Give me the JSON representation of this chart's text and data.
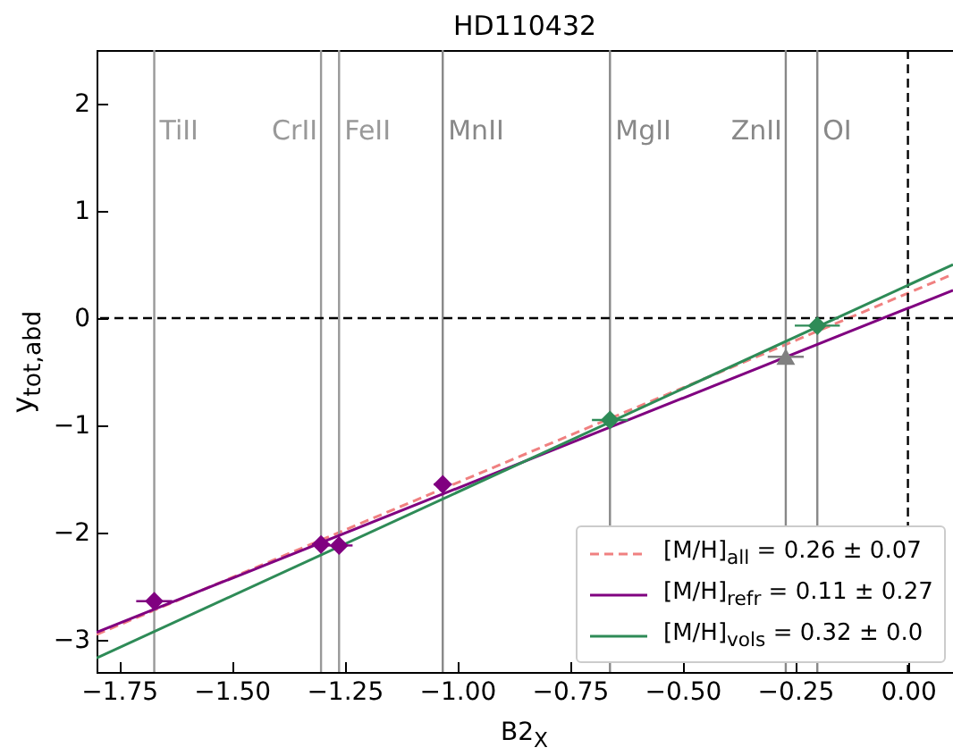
{
  "chart_data": {
    "type": "scatter",
    "title": "HD110432",
    "xlabel": "B2$_{X}$",
    "ylabel": "y$_{tot,abd}$",
    "xlim": [
      -1.8,
      0.1
    ],
    "ylim": [
      -3.3,
      2.5
    ],
    "xticks": [
      {
        "value": -1.75,
        "label": "−1.75"
      },
      {
        "value": -1.5,
        "label": "−1.50"
      },
      {
        "value": -1.25,
        "label": "−1.25"
      },
      {
        "value": -1.0,
        "label": "−1.00"
      },
      {
        "value": -0.75,
        "label": "−0.75"
      },
      {
        "value": -0.5,
        "label": "−0.50"
      },
      {
        "value": -0.25,
        "label": "−0.25"
      },
      {
        "value": 0,
        "label": "0.00"
      }
    ],
    "yticks": [
      {
        "value": -3,
        "label": "−3"
      },
      {
        "value": -2,
        "label": "−2"
      },
      {
        "value": -1,
        "label": "−1"
      },
      0,
      1,
      2
    ],
    "grid": false,
    "legend": "bottom right",
    "series": [
      {
        "type": "line",
        "name": "[M/H]$_{all}$ = 0.26 ± 0.07",
        "color": "#f08080",
        "line_style": "dashed",
        "marker": "none",
        "x": [
          -1.8,
          0.1
        ],
        "values": [
          -2.95,
          0.41
        ]
      },
      {
        "type": "line",
        "name": "[M/H]$_{refr}$ = 0.11 ± 0.27",
        "color": "#800080",
        "line_style": "solid",
        "marker": "none",
        "x": [
          -1.8,
          0.1
        ],
        "values": [
          -2.93,
          0.26
        ]
      },
      {
        "type": "line",
        "name": "[M/H]$_{vols}$ = 0.32 ± 0.0",
        "color": "#2e8b57",
        "line_style": "solid",
        "marker": "none",
        "x": [
          -1.8,
          0.1
        ],
        "values": [
          -3.17,
          0.5
        ]
      },
      {
        "color": "#800080",
        "marker": "diamond",
        "x": [
          -1.672,
          -1.302,
          -1.262,
          -1.032
        ],
        "values": [
          -2.64,
          -2.11,
          -2.12,
          -1.55
        ],
        "xerrors": [
          0.04,
          0.02,
          0.03,
          0.02
        ]
      },
      {
        "color": "#808080",
        "marker": "triangle",
        "x": [
          -0.271
        ],
        "values": [
          -0.36
        ],
        "xerrors": [
          0.04
        ]
      },
      {
        "color": "#2e8b57",
        "marker": "diamond",
        "x": [
          -0.661,
          -0.201
        ],
        "values": [
          -0.95,
          -0.07
        ],
        "xerrors": [
          0.04,
          0.05
        ]
      }
    ],
    "ref_lines": [
      {
        "axis": "x",
        "value": -1.672,
        "label": "TiII",
        "color": "#999999"
      },
      {
        "axis": "x",
        "value": -1.302,
        "label": "CrII",
        "color": "#999999"
      },
      {
        "axis": "x",
        "value": -1.262,
        "label": "FeII",
        "color": "#999999"
      },
      {
        "axis": "x",
        "value": -1.032,
        "label": "MnII",
        "color": "#888888"
      },
      {
        "axis": "x",
        "value": -0.661,
        "label": "MgII",
        "color": "#888888"
      },
      {
        "axis": "x",
        "value": -0.271,
        "label": "ZnII",
        "color": "#888888"
      },
      {
        "axis": "x",
        "value": -0.201,
        "label": "OI",
        "color": "#888888"
      },
      {
        "axis": "x",
        "value": 0,
        "color": "#000000",
        "line_style": "dashed"
      },
      {
        "axis": "y",
        "value": 0,
        "color": "#000000",
        "line_style": "dashed"
      }
    ]
  }
}
